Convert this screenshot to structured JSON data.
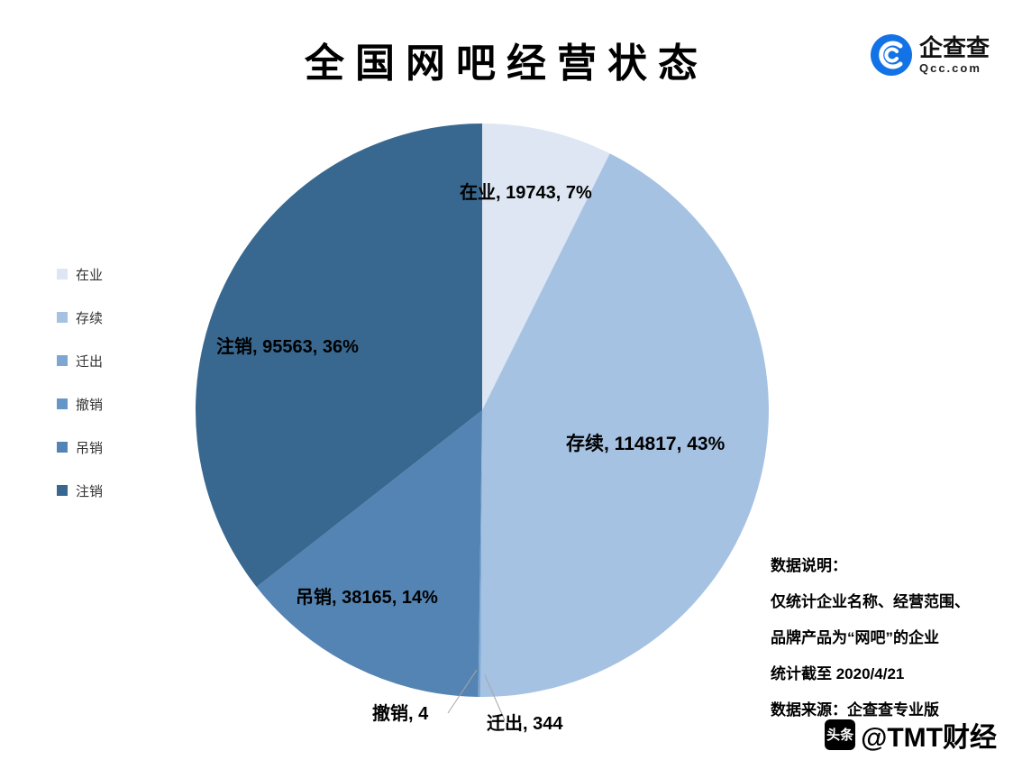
{
  "title": "全国网吧经营状态",
  "brand": {
    "name": "企查查",
    "domain": "Qcc.com",
    "accent_color": "#1373e6"
  },
  "chart_data": {
    "type": "pie",
    "title": "全国网吧经营状态",
    "categories": [
      "在业",
      "存续",
      "迁出",
      "撤销",
      "吊销",
      "注销"
    ],
    "values": [
      19743,
      114817,
      344,
      4,
      38165,
      95563
    ],
    "percent_labels": [
      "7%",
      "43%",
      "",
      "",
      "14%",
      "36%"
    ],
    "labels": [
      "在业, 19743, 7%",
      "存续, 114817, 43%",
      "迁出, 344",
      "撤销, 4",
      "吊销, 38165, 14%",
      "注销, 95563, 36%"
    ],
    "colors": [
      "#dde6f2",
      "#a6c2e2",
      "#7ea6d3",
      "#6695c8",
      "#5484b3",
      "#386890"
    ],
    "start_angle_deg": 0,
    "direction": "clockwise",
    "legend_position": "left"
  },
  "notes": {
    "heading": "数据说明：",
    "lines": [
      "仅统计企业名称、经营范围、",
      "品牌产品为“网吧”的企业",
      "统计截至 2020/4/21",
      "数据来源：企查查专业版"
    ]
  },
  "watermark": {
    "badge": "头条",
    "text": "@TMT财经"
  }
}
